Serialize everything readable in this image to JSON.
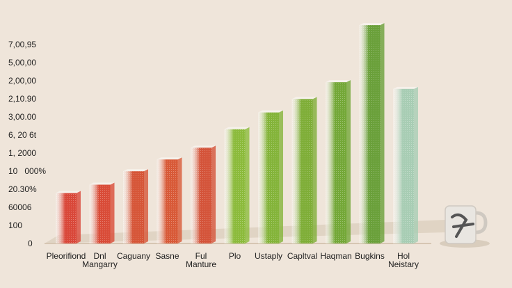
{
  "chart_data": {
    "type": "bar",
    "title": "",
    "xlabel": "",
    "ylabel": "",
    "y_tick_labels": [
      "0",
      "100",
      "60006",
      "20.30%",
      "10   000%",
      "1, 2000",
      "6, 20 6t",
      "3,00.00",
      "2,10.90",
      "2,00,00",
      "5,00,00",
      "7,00,95"
    ],
    "categories": [
      "Pleorifiond",
      "Dnl\nMangarry",
      "Caguany",
      "Sasne",
      "Ful\nManture",
      "Plo",
      "Ustaply",
      "Capltval",
      "Haqman",
      "Bugkins",
      "Hol\nNeistary"
    ],
    "values": [
      3.0,
      3.5,
      4.3,
      5.0,
      5.7,
      6.8,
      7.8,
      8.6,
      9.6,
      13.0,
      9.2
    ],
    "ylim": [
      0,
      13.5
    ],
    "bar_colors": [
      "#d9483a",
      "#d94c38",
      "#d65638",
      "#d85a38",
      "#d4543a",
      "#8cbb3c",
      "#84b43a",
      "#7fae38",
      "#74a838",
      "#6aa03a",
      "#a8cdb4"
    ],
    "grid": false,
    "legend": "none"
  },
  "decoration": {
    "icon": "coffee-mug-icon"
  }
}
